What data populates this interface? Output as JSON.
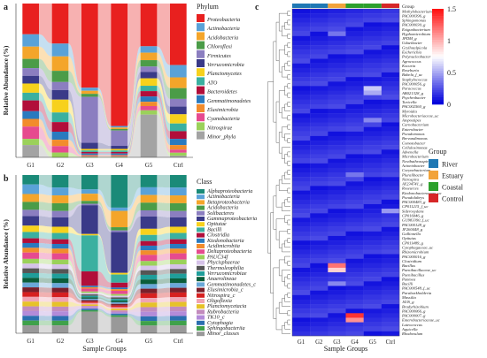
{
  "chart_data": [
    {
      "panel": "a",
      "type": "area",
      "ylabel": "Relative Abundance (%)",
      "xlabel": "",
      "ylim": [
        0,
        1
      ],
      "categories": [
        "G1",
        "G2",
        "G3",
        "G4",
        "G5",
        "Ctrl"
      ],
      "legend_title": "Phylum",
      "series": [
        {
          "name": "Proteobacteria",
          "color": "#e8201f",
          "values": [
            0.2,
            0.25,
            0.55,
            0.8,
            0.4,
            0.4
          ]
        },
        {
          "name": "Actinobacteria",
          "color": "#5aa2d8",
          "values": [
            0.08,
            0.08,
            0.02,
            0.01,
            0.06,
            0.08
          ]
        },
        {
          "name": "Acidobacteria",
          "color": "#f4a52a",
          "values": [
            0.08,
            0.09,
            0.02,
            0.01,
            0.07,
            0.07
          ]
        },
        {
          "name": "Chloroflexi",
          "color": "#4b9c48",
          "values": [
            0.06,
            0.07,
            0.02,
            0.01,
            0.06,
            0.07
          ]
        },
        {
          "name": "Firmicutes",
          "color": "#8b7ec0",
          "values": [
            0.05,
            0.05,
            0.3,
            0.1,
            0.05,
            0.05
          ]
        },
        {
          "name": "Verrucomicrobia",
          "color": "#3a3a88",
          "values": [
            0.05,
            0.06,
            0.04,
            0.02,
            0.06,
            0.05
          ]
        },
        {
          "name": "Planctomycetes",
          "color": "#f7d11c",
          "values": [
            0.06,
            0.08,
            0.01,
            0.01,
            0.07,
            0.06
          ]
        },
        {
          "name": "ATO",
          "color": "#3ab0a0",
          "values": [
            0.05,
            0.06,
            0.01,
            0.01,
            0.05,
            0.05
          ]
        },
        {
          "name": "Bacteroidetes",
          "color": "#b10e3a",
          "values": [
            0.07,
            0.06,
            0.01,
            0.01,
            0.05,
            0.05
          ]
        },
        {
          "name": "Gemmatimonadetes",
          "color": "#2a7abf",
          "values": [
            0.05,
            0.05,
            0.01,
            0.01,
            0.05,
            0.04
          ]
        },
        {
          "name": "Elusimicrobia",
          "color": "#f28c2c",
          "values": [
            0.05,
            0.04,
            0.005,
            0.005,
            0.04,
            0.03
          ]
        },
        {
          "name": "Cyanobacteria",
          "color": "#e64a8f",
          "values": [
            0.08,
            0.04,
            0.005,
            0.005,
            0.04,
            0.02
          ]
        },
        {
          "name": "Nitrospirae",
          "color": "#9bd15a",
          "values": [
            0.04,
            0.03,
            0.005,
            0.005,
            0.04,
            0.02
          ]
        },
        {
          "name": "Minor_phyla",
          "color": "#a3a3a3",
          "values": [
            0.08,
            0.0,
            0.0,
            0.0,
            0.4,
            0.01
          ]
        }
      ]
    },
    {
      "panel": "b",
      "type": "area",
      "ylabel": "Relative Abundance (%)",
      "xlabel": "Sample Groups",
      "ylim": [
        0,
        1
      ],
      "categories": [
        "G1",
        "G2",
        "G3",
        "G4",
        "G5",
        "Ctrl"
      ],
      "legend_title": "Class",
      "series": [
        {
          "name": "Alphaproteobacteria",
          "color": "#1a8a78",
          "values": [
            0.06,
            0.08,
            0.1,
            0.2,
            0.08,
            0.08
          ]
        },
        {
          "name": "Actinobacteria",
          "color": "#5aa2d8",
          "values": [
            0.06,
            0.05,
            0.03,
            0.02,
            0.05,
            0.05
          ]
        },
        {
          "name": "Betaproteobacteria",
          "color": "#f4a52a",
          "values": [
            0.05,
            0.05,
            0.05,
            0.1,
            0.05,
            0.05
          ]
        },
        {
          "name": "Acidobacteria",
          "color": "#4b9c48",
          "values": [
            0.05,
            0.05,
            0.02,
            0.02,
            0.05,
            0.05
          ]
        },
        {
          "name": "Solibacteres",
          "color": "#8b7ec0",
          "values": [
            0.04,
            0.04,
            0.01,
            0.01,
            0.04,
            0.04
          ]
        },
        {
          "name": "Gammaproteobacteria",
          "color": "#3a3a88",
          "values": [
            0.06,
            0.06,
            0.2,
            0.25,
            0.08,
            0.06
          ]
        },
        {
          "name": "Opitutae",
          "color": "#f7d11c",
          "values": [
            0.04,
            0.04,
            0.01,
            0.01,
            0.04,
            0.04
          ]
        },
        {
          "name": "Bacilli",
          "color": "#3ab0a0",
          "values": [
            0.04,
            0.04,
            0.25,
            0.05,
            0.04,
            0.04
          ]
        },
        {
          "name": "Clostridia",
          "color": "#b10e3a",
          "values": [
            0.03,
            0.03,
            0.1,
            0.03,
            0.03,
            0.03
          ]
        },
        {
          "name": "Ktedonobacteria",
          "color": "#2a7abf",
          "values": [
            0.03,
            0.03,
            0.01,
            0.01,
            0.03,
            0.03
          ]
        },
        {
          "name": "Acidimicrobiia",
          "color": "#f28c2c",
          "values": [
            0.03,
            0.03,
            0.01,
            0.01,
            0.03,
            0.03
          ]
        },
        {
          "name": "Deltaproteobacteria",
          "color": "#e64a8f",
          "values": [
            0.04,
            0.04,
            0.02,
            0.02,
            0.04,
            0.04
          ]
        },
        {
          "name": "PAUC34f",
          "color": "#9bd15a",
          "values": [
            0.03,
            0.03,
            0.01,
            0.01,
            0.03,
            0.03
          ]
        },
        {
          "name": "Phycisphaerae",
          "color": "#d5c2e8",
          "values": [
            0.03,
            0.03,
            0.01,
            0.01,
            0.03,
            0.03
          ]
        },
        {
          "name": "Thermoleophilia",
          "color": "#555555",
          "values": [
            0.03,
            0.03,
            0.01,
            0.01,
            0.03,
            0.03
          ]
        },
        {
          "name": "Verrucomicrobiae",
          "color": "#1f9e9a",
          "values": [
            0.03,
            0.03,
            0.01,
            0.01,
            0.03,
            0.03
          ]
        },
        {
          "name": "Anaerolineae",
          "color": "#0b5d3a",
          "values": [
            0.03,
            0.03,
            0.01,
            0.01,
            0.03,
            0.03
          ]
        },
        {
          "name": "Gemmatimonadetes_c",
          "color": "#6aa8d8",
          "values": [
            0.03,
            0.03,
            0.01,
            0.01,
            0.03,
            0.03
          ]
        },
        {
          "name": "Elusimicrobia_c",
          "color": "#7a1f2b",
          "values": [
            0.03,
            0.03,
            0.01,
            0.01,
            0.03,
            0.03
          ]
        },
        {
          "name": "Nitrospira_c",
          "color": "#d62020",
          "values": [
            0.03,
            0.03,
            0.01,
            0.01,
            0.03,
            0.03
          ]
        },
        {
          "name": "Oligoflexia",
          "color": "#f0a3b3",
          "values": [
            0.03,
            0.03,
            0.01,
            0.01,
            0.03,
            0.03
          ]
        },
        {
          "name": "Planctomycetacia",
          "color": "#e6c229",
          "values": [
            0.03,
            0.03,
            0.01,
            0.01,
            0.03,
            0.03
          ]
        },
        {
          "name": "Rubrobacteria",
          "color": "#c28bbd",
          "values": [
            0.03,
            0.03,
            0.01,
            0.01,
            0.03,
            0.03
          ]
        },
        {
          "name": "TK10_c",
          "color": "#b38bd9",
          "values": [
            0.03,
            0.03,
            0.01,
            0.01,
            0.03,
            0.03
          ]
        },
        {
          "name": "Cytophagia",
          "color": "#2b6fb0",
          "values": [
            0.03,
            0.03,
            0.01,
            0.01,
            0.03,
            0.03
          ]
        },
        {
          "name": "Sphingobacteriia",
          "color": "#3fa14a",
          "values": [
            0.03,
            0.03,
            0.01,
            0.01,
            0.03,
            0.03
          ]
        },
        {
          "name": "Minor_classes",
          "color": "#999999",
          "values": [
            0.05,
            0.05,
            0.15,
            0.1,
            0.05,
            0.05
          ]
        }
      ]
    },
    {
      "panel": "c",
      "type": "heatmap",
      "xlabel": "Sample Groups",
      "x": [
        "G1",
        "G2",
        "G3",
        "G4",
        "G5",
        "Ctrl"
      ],
      "group_label": "Group",
      "groups": [
        {
          "name": "River",
          "color": "#1f78b4"
        },
        {
          "name": "Estuary",
          "color": "#f2a33a"
        },
        {
          "name": "Coastal",
          "color": "#2ca02c"
        },
        {
          "name": "Control",
          "color": "#d62728"
        }
      ],
      "column_groups": [
        "River",
        "River",
        "Estuary",
        "Coastal",
        "Coastal",
        "Control"
      ],
      "colorbar": {
        "min": 0,
        "max": 1.5,
        "ticks": [
          "1.5",
          "1",
          "0.5",
          "0"
        ]
      },
      "rows": [
        "Methylobacterium",
        "PAC000396_g",
        "Sphingomonas",
        "PAC000030_g",
        "Exiguobacterium",
        "Hyphomicrobium",
        "JPDM_g",
        "Udaeibacter",
        "Gryllotalpicola",
        "Escherichia",
        "Polynucleobacter",
        "Agrococcus",
        "Kocuria",
        "Roseburia",
        "Babela_f_uc",
        "Staphylococcus",
        "PAC000056_g",
        "Paracoccus",
        "AB021328_g",
        "Psychrobacter",
        "Turicella",
        "PAC002560_g",
        "Myroides",
        "Microbacteriaceae_uc",
        "Atopostipes",
        "Carnobacterium",
        "Enterobacter",
        "Pseudomonas",
        "Brevundimonas",
        "Comotobacter",
        "Cellulosimonas",
        "Advenella",
        "Microbacterium",
        "Novibathrasspirillum",
        "Acinetobacter",
        "Corynebacterium",
        "Pluralibacter",
        "Nitrospira",
        "AY234741_g",
        "Roseurces",
        "Ktedonobacteraceae_uc",
        "Pseudolabrys",
        "PAC000483_g",
        "CP011215_f_uc",
        "Sideroxydans",
        "CP016046_g",
        "GU983390_f_uc",
        "PAC000128_g",
        "JF260448_g",
        "Gallionella",
        "Opitutus",
        "CP011489_g",
        "Cytophagaceae_uc",
        "Rhizomicrobium",
        "PAC000016_g",
        "Clostridium",
        "Bacillus",
        "Paenibacillaceae_uc",
        "Paenibacillus",
        "Pantoea",
        "Bacilli",
        "PAC000548_f_uc",
        "Paraburkholderia",
        "Massilia",
        "J43S_g",
        "Bradyrhizobium",
        "PAC000066_g",
        "PAC000007_g",
        "Enterobacteriaceae_uc",
        "Luteococcus",
        "Aquicella",
        "Rhodovulum"
      ]
    }
  ]
}
